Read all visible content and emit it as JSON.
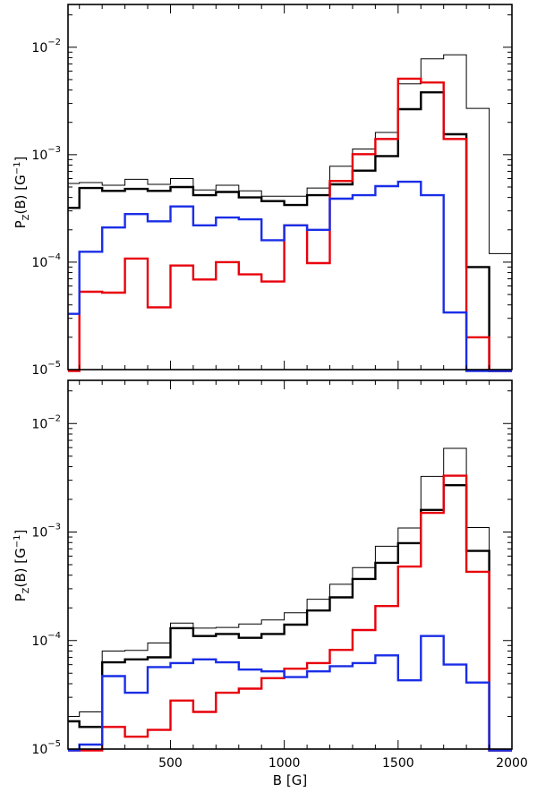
{
  "chart_data": [
    {
      "type": "histogram",
      "xlabel": "",
      "ylabel": "P_Z(B) [G⁻¹]",
      "ylabel_parts": {
        "main": "P",
        "sub": "Z",
        "mid": "(B) [G",
        "sup": "−1",
        "end": "]"
      },
      "xlim": [
        50,
        2000
      ],
      "ylim": [
        1e-05,
        0.025
      ],
      "yscale": "log",
      "bin_edges": [
        50,
        100,
        200,
        300,
        400,
        500,
        600,
        700,
        800,
        900,
        1000,
        1100,
        1200,
        1300,
        1400,
        1500,
        1600,
        1700,
        1800,
        1900,
        2000
      ],
      "ytick_labels": [
        {
          "base": "10",
          "exp": "−5",
          "value": 1e-05
        },
        {
          "base": "10",
          "exp": "−4",
          "value": 0.0001
        },
        {
          "base": "10",
          "exp": "−3",
          "value": 0.001
        },
        {
          "base": "10",
          "exp": "−2",
          "value": 0.01
        }
      ],
      "xtick_labels": [],
      "series": [
        {
          "name": "total (thin)",
          "color": "#000000",
          "width": 1,
          "values": [
            0.00054,
            0.00055,
            0.00052,
            0.00059,
            0.00053,
            0.0006,
            0.00047,
            0.00052,
            0.00046,
            0.00041,
            0.00041,
            0.00049,
            0.00078,
            0.00113,
            0.00161,
            0.00455,
            0.0078,
            0.0085,
            0.0027,
            0.00012
          ]
        },
        {
          "name": "total (thick)",
          "color": "#000000",
          "width": 2.4,
          "values": [
            0.00032,
            0.00049,
            0.00046,
            0.00048,
            0.00046,
            0.0005,
            0.00042,
            0.00045,
            0.0004,
            0.00037,
            0.00034,
            0.00042,
            0.00053,
            0.00071,
            0.00097,
            0.00265,
            0.0038,
            0.00155,
            9e-05,
            9.5e-06
          ]
        },
        {
          "name": "red",
          "color": "#e8000b",
          "width": 2.4,
          "values": [
            9.5e-06,
            5.3e-05,
            5.2e-05,
            0.000108,
            3.8e-05,
            9.3e-05,
            6.9e-05,
            0.0001,
            7.7e-05,
            6.6e-05,
            0.00022,
            9.8e-05,
            0.00057,
            0.00101,
            0.0014,
            0.0051,
            0.0047,
            0.0014,
            2e-05,
            9.5e-06
          ]
        },
        {
          "name": "blue",
          "color": "#1a2ee6",
          "width": 2.4,
          "values": [
            3.3e-05,
            0.000125,
            0.00021,
            0.00028,
            0.00024,
            0.00033,
            0.00022,
            0.00026,
            0.00025,
            0.00016,
            0.00022,
            0.0002,
            0.00039,
            0.00042,
            0.00051,
            0.00056,
            0.00042,
            3.4e-05,
            9.5e-06,
            9.5e-06
          ]
        }
      ]
    },
    {
      "type": "histogram",
      "xlabel": "B [G]",
      "ylabel": "P_Z(B) [G⁻¹]",
      "ylabel_parts": {
        "main": "P",
        "sub": "Z",
        "mid": "(B) [G",
        "sup": "−1",
        "end": "]"
      },
      "xlim": [
        50,
        2000
      ],
      "ylim": [
        1e-05,
        0.025
      ],
      "yscale": "log",
      "bin_edges": [
        50,
        100,
        200,
        300,
        400,
        500,
        600,
        700,
        800,
        900,
        1000,
        1100,
        1200,
        1300,
        1400,
        1500,
        1600,
        1700,
        1800,
        1900,
        2000
      ],
      "ytick_labels": [
        {
          "base": "10",
          "exp": "−5",
          "value": 1e-05
        },
        {
          "base": "10",
          "exp": "−4",
          "value": 0.0001
        },
        {
          "base": "10",
          "exp": "−3",
          "value": 0.001
        },
        {
          "base": "10",
          "exp": "−2",
          "value": 0.01
        }
      ],
      "xtick_labels": [
        {
          "label": "500",
          "value": 500
        },
        {
          "label": "1000",
          "value": 1000
        },
        {
          "label": "1500",
          "value": 1500
        },
        {
          "label": "2000",
          "value": 2000
        }
      ],
      "series": [
        {
          "name": "total (thin)",
          "color": "#000000",
          "width": 1,
          "values": [
            2e-05,
            2.2e-05,
            8e-05,
            8.1e-05,
            9.5e-05,
            0.000145,
            0.00013,
            0.000132,
            0.000142,
            0.000155,
            0.00018,
            0.00024,
            0.00033,
            0.00047,
            0.00074,
            0.00109,
            0.00325,
            0.0059,
            0.0011,
            9.5e-06
          ]
        },
        {
          "name": "total (thick)",
          "color": "#000000",
          "width": 2.4,
          "values": [
            1.8e-05,
            1.6e-05,
            6.3e-05,
            6.7e-05,
            7e-05,
            0.00013,
            0.00011,
            0.000115,
            0.000106,
            0.000115,
            0.00014,
            0.000189,
            0.00025,
            0.00037,
            0.00052,
            0.00079,
            0.0016,
            0.0027,
            0.00067,
            9.5e-06
          ]
        },
        {
          "name": "red",
          "color": "#e8000b",
          "width": 2.4,
          "values": [
            9.5e-06,
            9.5e-06,
            1.6e-05,
            1.3e-05,
            1.5e-05,
            2.8e-05,
            2.2e-05,
            3.3e-05,
            3.6e-05,
            4.5e-05,
            5.5e-05,
            6.2e-05,
            8.2e-05,
            0.000125,
            0.000208,
            0.00048,
            0.0015,
            0.0033,
            0.00043,
            9.5e-06
          ]
        },
        {
          "name": "blue",
          "color": "#1a2ee6",
          "width": 2.4,
          "values": [
            9.5e-06,
            1.1e-05,
            4.7e-05,
            3.3e-05,
            5.7e-05,
            6.2e-05,
            6.7e-05,
            6.3e-05,
            5.4e-05,
            5.2e-05,
            4.6e-05,
            5.2e-05,
            5.8e-05,
            6.2e-05,
            7.3e-05,
            4.3e-05,
            0.00011,
            6e-05,
            4.1e-05,
            9.5e-06
          ]
        }
      ]
    }
  ]
}
